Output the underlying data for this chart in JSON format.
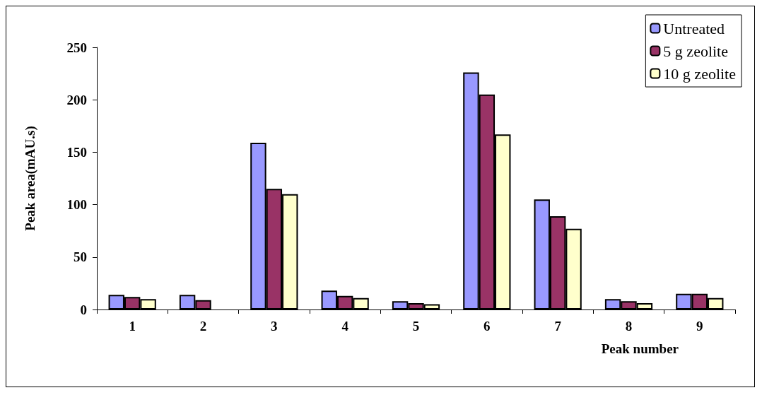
{
  "chart_data": {
    "type": "bar",
    "xlabel": "Peak number",
    "ylabel": "Peak area(mAU.s)",
    "categories": [
      "1",
      "2",
      "3",
      "4",
      "5",
      "6",
      "7",
      "8",
      "9"
    ],
    "series": [
      {
        "name": "Untreated",
        "color": "#9999ff",
        "values": [
          14,
          14,
          159,
          18,
          8,
          226,
          105,
          10,
          15
        ]
      },
      {
        "name": "5 g zeolite",
        "color": "#993366",
        "values": [
          12,
          9,
          115,
          13,
          6,
          205,
          89,
          8,
          15
        ]
      },
      {
        "name": "10 g zeolite",
        "color": "#ffffcc",
        "values": [
          10,
          null,
          110,
          11,
          5,
          167,
          77,
          6,
          11
        ]
      }
    ],
    "ylim": [
      0,
      250
    ],
    "yticks": [
      0,
      50,
      100,
      150,
      200,
      250
    ],
    "grid": false,
    "legend": "top right"
  }
}
